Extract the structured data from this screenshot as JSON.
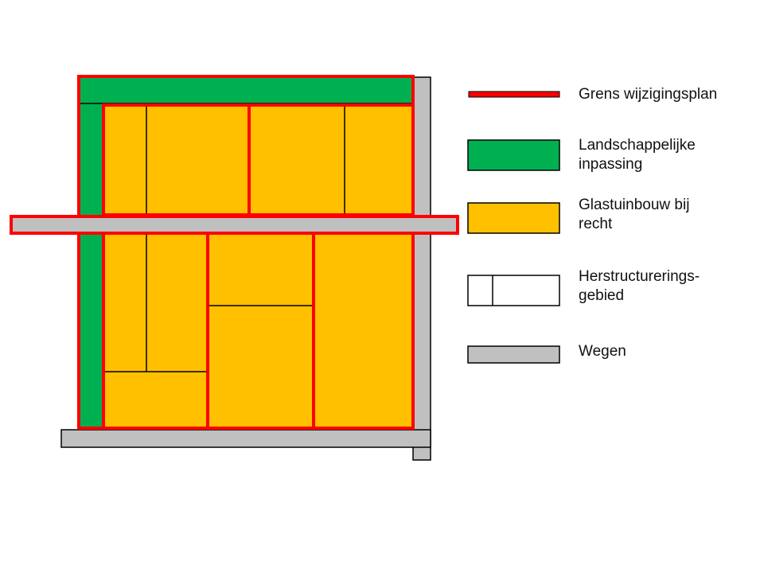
{
  "colors": {
    "boundary": "#ff0000",
    "landscape": "#00b050",
    "greenhouse": "#ffc000",
    "road": "#c0c0c0",
    "outline": "#000000"
  },
  "legend": [
    {
      "key": "boundary",
      "label": "Grens wijzigingsplan"
    },
    {
      "key": "landscape",
      "label": "Landschappelijke inpassing"
    },
    {
      "key": "greenhouse",
      "label": "Glastuinbouw bij recht"
    },
    {
      "key": "restructuring",
      "label": "Herstructurerings-gebied"
    },
    {
      "key": "road",
      "label": "Wegen"
    }
  ]
}
